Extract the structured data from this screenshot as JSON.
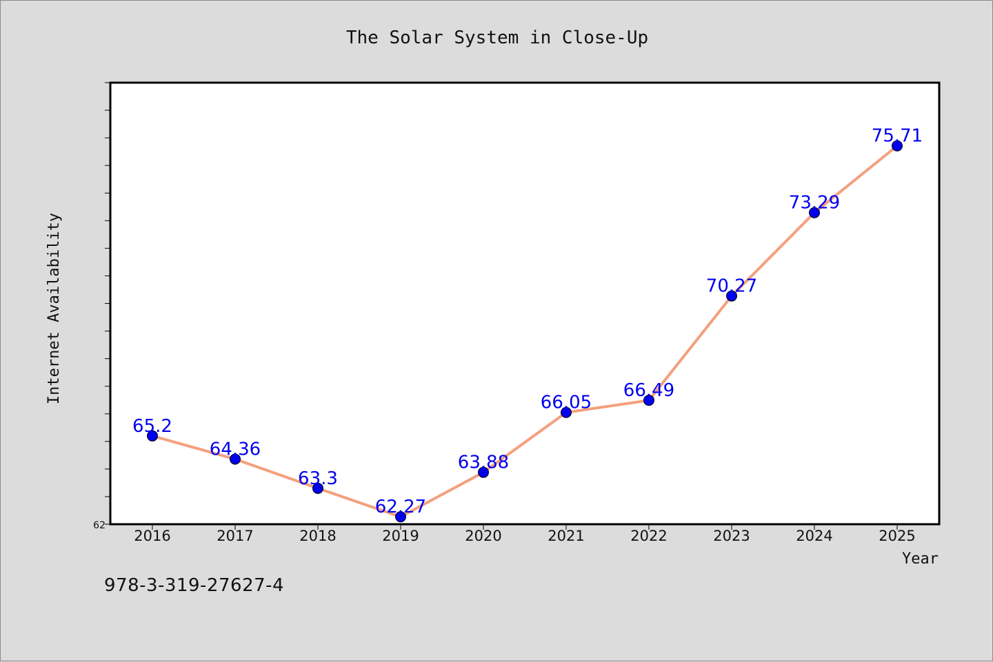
{
  "chart_data": {
    "type": "line",
    "title": "The Solar System in Close-Up",
    "xlabel": "Year",
    "ylabel": "Internet Availability",
    "categories": [
      "2016",
      "2017",
      "2018",
      "2019",
      "2020",
      "2021",
      "2022",
      "2023",
      "2024",
      "2025"
    ],
    "values": [
      65.2,
      64.36,
      63.3,
      62.27,
      63.88,
      66.05,
      66.49,
      70.27,
      73.29,
      75.71
    ],
    "data_labels": [
      "65.2",
      "64.36",
      "63.3",
      "62.27",
      "63.88",
      "66.05",
      "66.49",
      "70.27",
      "73.29",
      "75.71"
    ],
    "ylim": [
      62,
      78
    ],
    "ytick_label": "62",
    "grid": false,
    "line_color": "#f4a07e",
    "marker_color": "#0000ee",
    "label_color": "#0000ee"
  },
  "footer": {
    "isbn": "978-3-319-27627-4"
  }
}
